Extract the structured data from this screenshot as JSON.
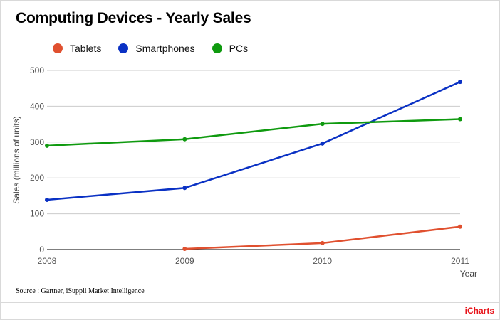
{
  "title": "Computing Devices - Yearly Sales",
  "source": "Source : Gartner, iSuppli Market Intelligence",
  "brand": "iCharts",
  "chart_data": {
    "type": "line",
    "title": "Computing Devices - Yearly Sales",
    "xlabel": "Year",
    "ylabel": "Sales (millions of units)",
    "categories": [
      "2008",
      "2009",
      "2010",
      "2011"
    ],
    "ylim": [
      0,
      500
    ],
    "yticks": [
      0,
      100,
      200,
      300,
      400,
      500
    ],
    "grid": true,
    "legend_position": "top-left",
    "series": [
      {
        "name": "Tablets",
        "color": "#e0502f",
        "values": [
          null,
          2,
          18,
          64
        ]
      },
      {
        "name": "Smartphones",
        "color": "#0a31c4",
        "values": [
          139,
          172,
          296,
          468
        ]
      },
      {
        "name": "PCs",
        "color": "#0f9a0f",
        "values": [
          290,
          308,
          351,
          364
        ]
      }
    ]
  }
}
